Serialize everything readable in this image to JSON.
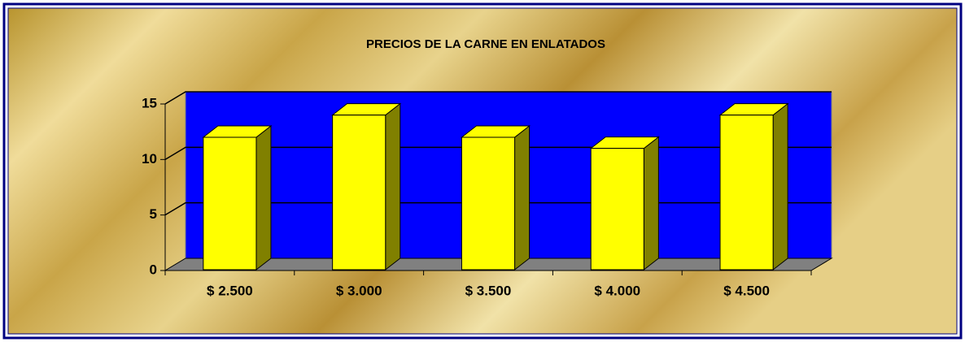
{
  "chart_data": {
    "type": "bar3d",
    "title": "PRECIOS DE LA CARNE EN ENLATADOS",
    "categories": [
      "$ 2.500",
      "$ 3.000",
      "$ 3.500",
      "$ 4.000",
      "$ 4.500"
    ],
    "values": [
      12,
      14,
      12,
      11,
      14
    ],
    "color": "#ffff00",
    "side_color": "#808000",
    "wall_color": "#0000ff",
    "floor_color": "#808080",
    "ylim": [
      0,
      15
    ],
    "yticks": [
      0,
      5,
      10,
      15
    ],
    "grid": true
  }
}
